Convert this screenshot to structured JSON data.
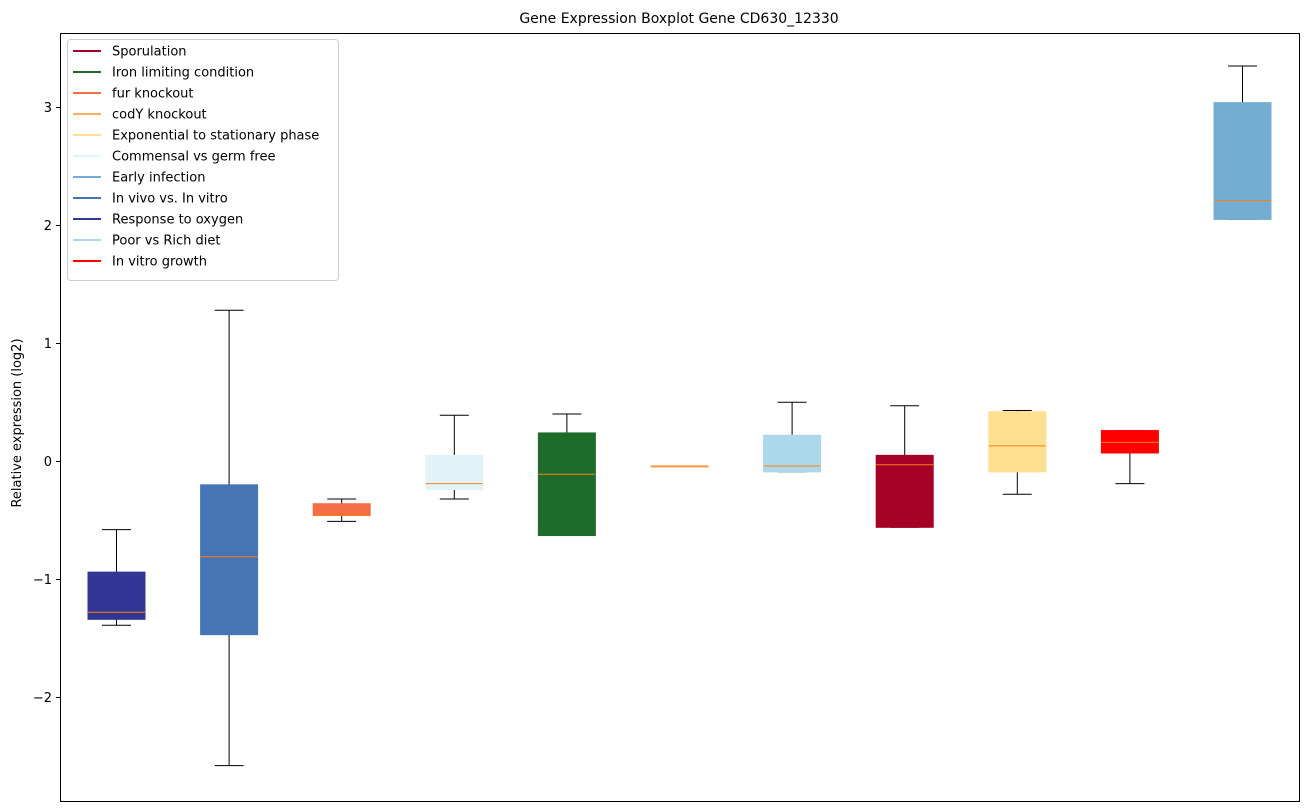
{
  "chart_data": {
    "type": "box",
    "title": "Gene Expression Boxplot Gene CD630_12330",
    "xlabel": "",
    "ylabel": "Relative expression (log2)",
    "ylim": [
      -2.88,
      3.63
    ],
    "yticks": [
      -2,
      -1,
      0,
      1,
      2,
      3
    ],
    "ytick_labels": [
      "−2",
      "−1",
      "0",
      "1",
      "2",
      "3"
    ],
    "grid": false,
    "legend_position": "top-left",
    "legend": [
      {
        "label": "Sporulation",
        "color": "#a50026"
      },
      {
        "label": "Iron limiting condition",
        "color": "#1f6b2b"
      },
      {
        "label": "fur knockout",
        "color": "#f46d43"
      },
      {
        "label": "codY knockout",
        "color": "#fdae61"
      },
      {
        "label": "Exponential to stationary phase",
        "color": "#fee090"
      },
      {
        "label": "Commensal vs germ free",
        "color": "#e0f3f8"
      },
      {
        "label": "Early infection",
        "color": "#74add1"
      },
      {
        "label": "In vivo vs. In vitro",
        "color": "#4575b4"
      },
      {
        "label": "Response to oxygen",
        "color": "#313695"
      },
      {
        "label": "Poor vs Rich diet",
        "color": "#abd9e9"
      },
      {
        "label": "In vitro growth",
        "color": "#ff0000"
      }
    ],
    "boxes": [
      {
        "group": "Response to oxygen",
        "color": "#313695",
        "whisker_low": -1.39,
        "q1": -1.34,
        "median": -1.28,
        "q3": -0.94,
        "whisker_high": -0.58
      },
      {
        "group": "In vivo vs. In vitro",
        "color": "#4575b4",
        "whisker_low": -2.58,
        "q1": -1.47,
        "median": -0.81,
        "q3": -0.2,
        "whisker_high": 1.28
      },
      {
        "group": "fur knockout",
        "color": "#f46d43",
        "whisker_low": -0.51,
        "q1": -0.46,
        "median": -0.46,
        "q3": -0.36,
        "whisker_high": -0.32
      },
      {
        "group": "Commensal vs germ free",
        "color": "#e0f3f8",
        "whisker_low": -0.32,
        "q1": -0.24,
        "median": -0.19,
        "q3": 0.05,
        "whisker_high": 0.39
      },
      {
        "group": "Iron limiting condition",
        "color": "#1f6b2b",
        "whisker_low": -0.63,
        "q1": -0.63,
        "median": -0.11,
        "q3": 0.24,
        "whisker_high": 0.4
      },
      {
        "group": "codY knockout",
        "color": "#fdae61",
        "whisker_low": -0.04,
        "q1": -0.04,
        "median": -0.04,
        "q3": -0.04,
        "whisker_high": -0.04
      },
      {
        "group": "Poor vs Rich diet",
        "color": "#abd9e9",
        "whisker_low": -0.09,
        "q1": -0.09,
        "median": -0.04,
        "q3": 0.22,
        "whisker_high": 0.5
      },
      {
        "group": "Sporulation",
        "color": "#a50026",
        "whisker_low": -0.56,
        "q1": -0.56,
        "median": -0.03,
        "q3": 0.05,
        "whisker_high": 0.47
      },
      {
        "group": "Exponential to stationary phase",
        "color": "#fee090",
        "whisker_low": -0.28,
        "q1": -0.09,
        "median": 0.13,
        "q3": 0.42,
        "whisker_high": 0.43
      },
      {
        "group": "In vitro growth",
        "color": "#ff0000",
        "whisker_low": -0.19,
        "q1": 0.07,
        "median": 0.16,
        "q3": 0.26,
        "whisker_high": 0.26
      },
      {
        "group": "Early infection",
        "color": "#74add1",
        "whisker_low": 2.05,
        "q1": 2.05,
        "median": 2.21,
        "q3": 3.04,
        "whisker_high": 3.35
      }
    ],
    "median_color": "#ff7f0e"
  }
}
